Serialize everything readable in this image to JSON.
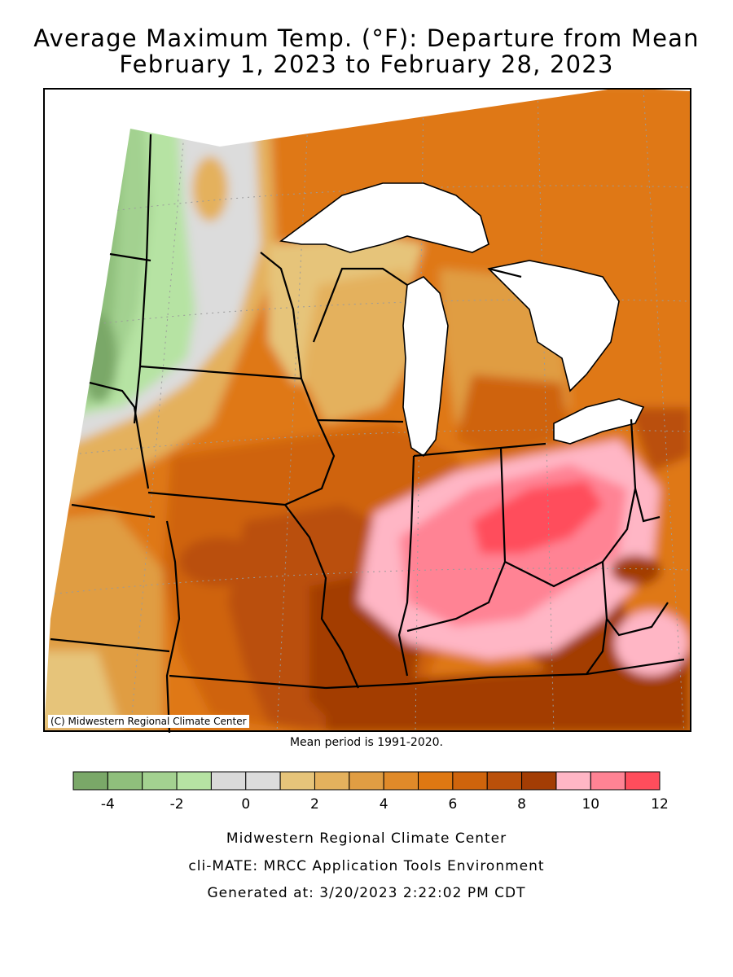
{
  "title": {
    "line1": "Average Maximum Temp. (°F): Departure from Mean",
    "line2": "February 1, 2023 to February 28, 2023"
  },
  "map": {
    "credit": "(C) Midwestern Regional Climate Center",
    "mean_period": "Mean period is 1991-2020."
  },
  "legend": {
    "colors": [
      "#7aa868",
      "#8fbf7c",
      "#a3d190",
      "#b6e3a3",
      "#d9d9d9",
      "#dcdcdc",
      "#e6c47a",
      "#e4b15d",
      "#e09d43",
      "#e08a29",
      "#df7812",
      "#cf640c",
      "#ba500a",
      "#a33d04",
      "#ffb6c5",
      "#ff8394",
      "#ff4d5c"
    ],
    "ticks": [
      "-4",
      "-2",
      "0",
      "2",
      "4",
      "6",
      "8",
      "10",
      "12"
    ]
  },
  "footer": {
    "org": "Midwestern Regional Climate Center",
    "tool": "cli-MATE: MRCC Application Tools Environment",
    "generated": "Generated at: 3/20/2023 2:22:02 PM CDT"
  }
}
